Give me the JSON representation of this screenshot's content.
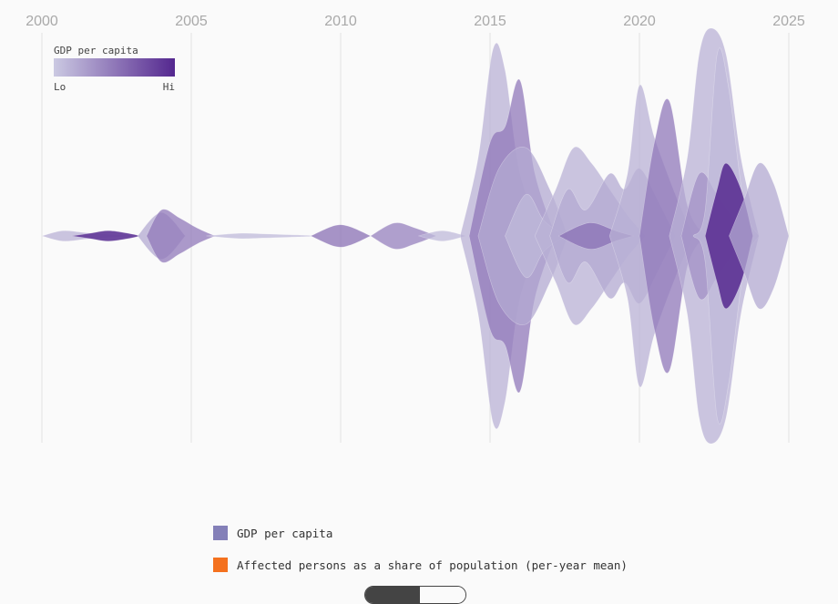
{
  "chart_data": {
    "type": "area",
    "xlim": [
      2000,
      2025
    ],
    "x_ticks": [
      "2000",
      "2005",
      "2010",
      "2015",
      "2020",
      "2025"
    ],
    "gradient_legend": {
      "title": "GDP per capita",
      "low_label": "Lo",
      "high_label": "Hi",
      "low_color": "#cbc9e2",
      "high_color": "#54278f"
    },
    "series": [
      {
        "shade": 0.15,
        "points": [
          [
            2000,
            0
          ],
          [
            2000.7,
            0.1
          ],
          [
            2001.5,
            0.06
          ],
          [
            2002.5,
            0.02
          ],
          [
            2003.3,
            0
          ]
        ]
      },
      {
        "shade": 0.85,
        "points": [
          [
            2001,
            0
          ],
          [
            2001.6,
            0.05
          ],
          [
            2002.2,
            0.1
          ],
          [
            2002.8,
            0.06
          ],
          [
            2003.3,
            0
          ]
        ]
      },
      {
        "shade": 0.2,
        "points": [
          [
            2003.2,
            0
          ],
          [
            2004,
            0.45
          ],
          [
            2004.8,
            0
          ]
        ]
      },
      {
        "shade": 0.5,
        "points": [
          [
            2003.5,
            0
          ],
          [
            2004,
            0.5
          ],
          [
            2004.6,
            0.35
          ],
          [
            2005.2,
            0.15
          ],
          [
            2005.8,
            0
          ]
        ]
      },
      {
        "shade": 0.1,
        "points": [
          [
            2005.5,
            0
          ],
          [
            2006.6,
            0.05
          ],
          [
            2007.4,
            0.04
          ],
          [
            2008.5,
            0.02
          ],
          [
            2009.3,
            0
          ]
        ]
      },
      {
        "shade": 0.55,
        "points": [
          [
            2009,
            0
          ],
          [
            2009.8,
            0.2
          ],
          [
            2010.3,
            0.18
          ],
          [
            2011,
            0
          ]
        ]
      },
      {
        "shade": 0.45,
        "points": [
          [
            2011,
            0
          ],
          [
            2011.8,
            0.25
          ],
          [
            2012.5,
            0.15
          ],
          [
            2013.2,
            0
          ]
        ]
      },
      {
        "shade": 0.1,
        "points": [
          [
            2012.6,
            0
          ],
          [
            2013.4,
            0.1
          ],
          [
            2014.2,
            0
          ]
        ]
      },
      {
        "shade": 0.15,
        "points": [
          [
            2014,
            0
          ],
          [
            2014.6,
            1.5
          ],
          [
            2015.1,
            3.6
          ],
          [
            2015.5,
            3.2
          ],
          [
            2016,
            1.2
          ],
          [
            2016.8,
            0
          ]
        ]
      },
      {
        "shade": 0.5,
        "points": [
          [
            2014.3,
            0
          ],
          [
            2015,
            1.8
          ],
          [
            2015.5,
            2.1
          ],
          [
            2016,
            3.0
          ],
          [
            2016.5,
            1.2
          ],
          [
            2017.2,
            0
          ]
        ]
      },
      {
        "shade": 0.2,
        "points": [
          [
            2014.6,
            0
          ],
          [
            2015.3,
            1.3
          ],
          [
            2016.2,
            1.7
          ],
          [
            2017,
            0.9
          ],
          [
            2017.6,
            0
          ]
        ]
      },
      {
        "shade": 0.1,
        "points": [
          [
            2015.5,
            0
          ],
          [
            2016.2,
            0.8
          ],
          [
            2016.8,
            0.3
          ],
          [
            2017.5,
            0
          ]
        ]
      },
      {
        "shade": 0.15,
        "points": [
          [
            2016.5,
            0
          ],
          [
            2017.2,
            0.9
          ],
          [
            2017.8,
            1.7
          ],
          [
            2018.4,
            1.4
          ],
          [
            2019,
            0.9
          ],
          [
            2019.6,
            0.4
          ],
          [
            2020.2,
            0
          ]
        ]
      },
      {
        "shade": 0.2,
        "points": [
          [
            2017,
            0
          ],
          [
            2017.6,
            0.9
          ],
          [
            2018.2,
            0.5
          ],
          [
            2019,
            1.2
          ],
          [
            2019.5,
            0.9
          ],
          [
            2020,
            1.3
          ],
          [
            2020.6,
            0.7
          ],
          [
            2021.2,
            0
          ]
        ]
      },
      {
        "shade": 0.55,
        "points": [
          [
            2017.3,
            0
          ],
          [
            2018,
            0.2
          ],
          [
            2018.5,
            0.25
          ],
          [
            2019.2,
            0.1
          ],
          [
            2019.8,
            0
          ]
        ]
      },
      {
        "shade": 0.15,
        "points": [
          [
            2019,
            0
          ],
          [
            2019.6,
            1.2
          ],
          [
            2020,
            2.9
          ],
          [
            2020.5,
            1.9
          ],
          [
            2021.2,
            0.8
          ],
          [
            2021.8,
            0
          ]
        ]
      },
      {
        "shade": 0.5,
        "points": [
          [
            2020,
            0
          ],
          [
            2020.5,
            1.8
          ],
          [
            2021,
            2.6
          ],
          [
            2021.6,
            0.6
          ],
          [
            2022.2,
            0
          ]
        ]
      },
      {
        "shade": 0.15,
        "points": [
          [
            2021,
            0
          ],
          [
            2021.6,
            1.5
          ],
          [
            2022,
            3.5
          ],
          [
            2022.4,
            4.0
          ],
          [
            2022.9,
            3.5
          ],
          [
            2023.4,
            1.5
          ],
          [
            2024,
            0
          ]
        ]
      },
      {
        "shade": 0.35,
        "points": [
          [
            2021.4,
            0
          ],
          [
            2022,
            1.2
          ],
          [
            2022.6,
            0.8
          ],
          [
            2023.2,
            0.3
          ],
          [
            2023.8,
            0
          ]
        ]
      },
      {
        "shade": 0.1,
        "points": [
          [
            2021.8,
            0
          ],
          [
            2022.2,
            0.5
          ],
          [
            2022.6,
            3.5
          ],
          [
            2023,
            2.8
          ],
          [
            2023.5,
            0.6
          ],
          [
            2024,
            0
          ]
        ]
      },
      {
        "shade": 0.9,
        "points": [
          [
            2022.2,
            0
          ],
          [
            2022.6,
            0.9
          ],
          [
            2022.9,
            1.4
          ],
          [
            2023.4,
            0.9
          ],
          [
            2023.8,
            0
          ]
        ]
      },
      {
        "shade": 0.2,
        "points": [
          [
            2023,
            0
          ],
          [
            2023.5,
            0.7
          ],
          [
            2024,
            1.4
          ],
          [
            2024.5,
            1.0
          ],
          [
            2025,
            0
          ]
        ]
      }
    ]
  },
  "legend": {
    "items": [
      {
        "label": "GDP per capita",
        "color": "#8480b8"
      },
      {
        "label": "Affected persons as a share of population (per-year mean)",
        "color": "#f4711e"
      }
    ]
  }
}
